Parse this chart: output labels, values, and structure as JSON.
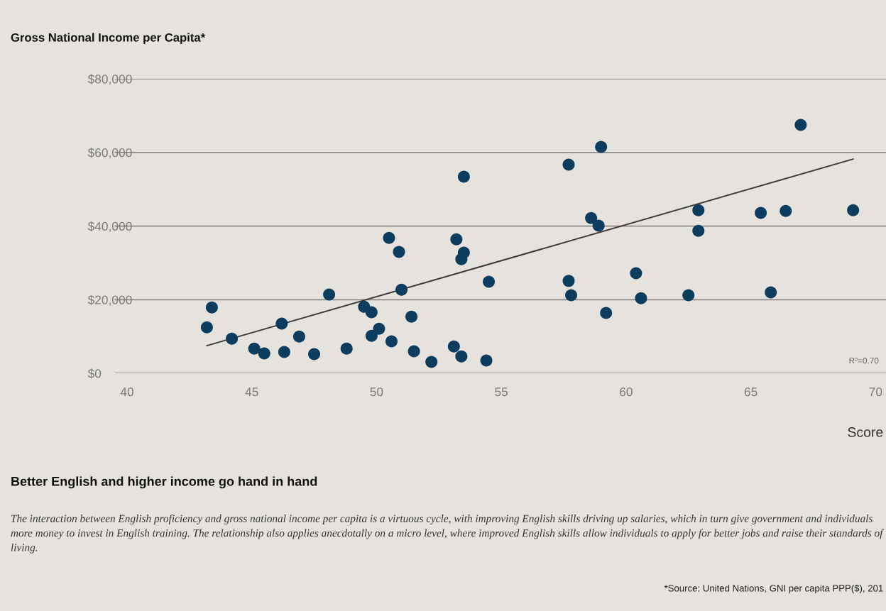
{
  "chart_data": {
    "type": "scatter",
    "title": "Gross National Income per Capita*",
    "xlabel": "Score",
    "x": [
      43.2,
      43.4,
      44.2,
      45.1,
      45.5,
      46.2,
      46.3,
      46.9,
      47.5,
      48.1,
      48.8,
      49.5,
      49.8,
      49.8,
      50.1,
      50.5,
      50.6,
      50.9,
      51.0,
      51.4,
      51.5,
      52.2,
      53.1,
      53.2,
      53.4,
      53.4,
      53.5,
      53.5,
      54.4,
      54.5,
      57.7,
      57.7,
      57.8,
      58.6,
      58.9,
      59.0,
      59.2,
      60.4,
      60.6,
      62.5,
      62.9,
      62.9,
      65.4,
      65.8,
      66.4,
      67.0,
      69.1
    ],
    "series": [
      {
        "marker": "circle",
        "color": "#0d3d5e",
        "values": [
          12500,
          17900,
          9400,
          6700,
          5400,
          13500,
          5800,
          10000,
          5200,
          21400,
          6700,
          18100,
          16600,
          10200,
          12100,
          36800,
          8700,
          33000,
          22700,
          15400,
          6000,
          3100,
          7300,
          36400,
          4600,
          31000,
          32800,
          53400,
          3500,
          24900,
          56700,
          25100,
          21200,
          42200,
          40100,
          61500,
          16400,
          27200,
          20400,
          21200,
          44300,
          38700,
          43600,
          22000,
          44100,
          67500,
          44300
        ]
      },
      {
        "type": "line",
        "color": "#3a3a3a",
        "x": [
          43.2,
          69.1
        ],
        "values": [
          7500,
          58200
        ]
      }
    ],
    "xlim": [
      39.5,
      70.5
    ],
    "xticks": [
      40,
      45,
      50,
      55,
      60,
      65,
      70
    ],
    "ylim": [
      0,
      80000
    ],
    "yticks": [
      {
        "value": 0,
        "label": "$0"
      },
      {
        "value": 20000,
        "label": "$20,000"
      },
      {
        "value": 40000,
        "label": "$40,000"
      },
      {
        "value": 60000,
        "label": "$60,000"
      },
      {
        "value": 80000,
        "label": "$80,000"
      }
    ],
    "grid": "y",
    "legend": false,
    "annotations": [
      "R²=0.70",
      "Better English and higher income go hand in hand",
      "The interaction between English proficiency and gross national income per capita is a virtuous cycle, with improving English skills driving up salaries, which in turn give government and individuals more money to invest in English training. The relationship also applies anecdotally on a micro level, where improved English skills allow individuals to apply for better jobs and raise their standards of living.",
      "*Source: United Nations, GNI per capita PPP($), 201"
    ]
  }
}
